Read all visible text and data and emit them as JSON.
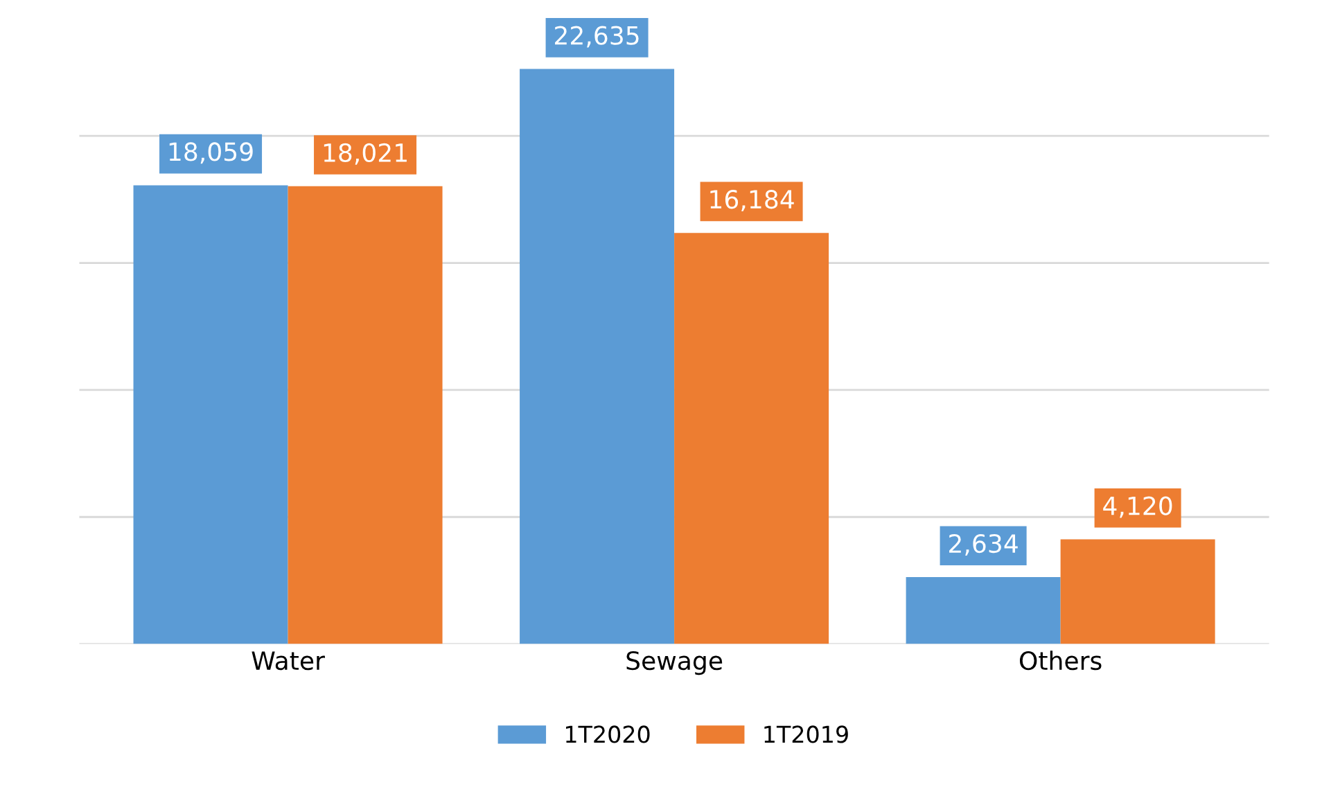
{
  "chart_data": {
    "type": "bar",
    "categories": [
      "Water",
      "Sewage",
      "Others"
    ],
    "series": [
      {
        "name": "1T2020",
        "color": "#5b9bd5",
        "values": [
          18059,
          22635,
          2634
        ],
        "value_labels": [
          "18,059",
          "22,635",
          "2,634"
        ]
      },
      {
        "name": "1T2019",
        "color": "#ed7d31",
        "values": [
          18021,
          16184,
          4120
        ],
        "value_labels": [
          "18,021",
          "16,184",
          "4,120"
        ]
      }
    ],
    "grid": "y",
    "legend": "bottom"
  }
}
